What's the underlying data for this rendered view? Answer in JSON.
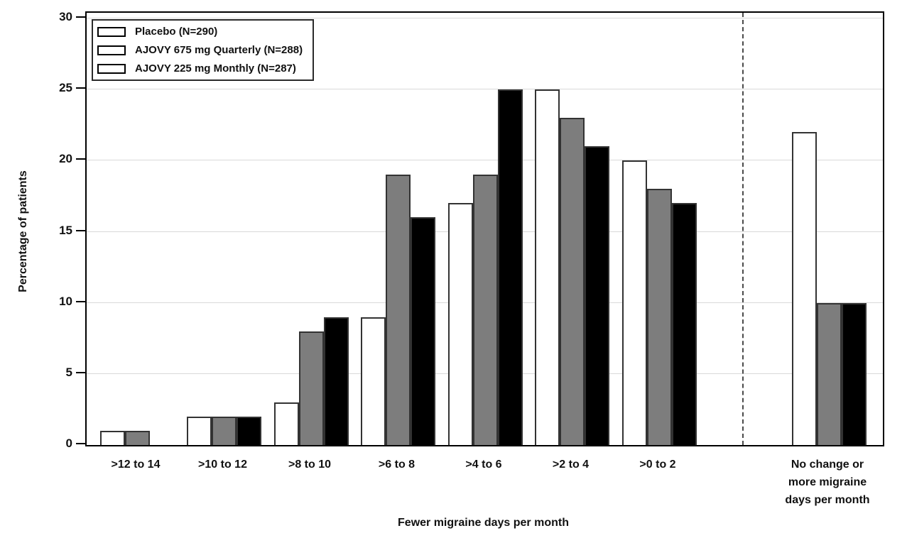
{
  "chart_data": {
    "type": "bar",
    "title": "",
    "xlabel": "Fewer migraine days per month",
    "ylabel": "Percentage of patients",
    "ylim": [
      0,
      30
    ],
    "yticks": [
      0,
      5,
      10,
      15,
      20,
      25,
      30
    ],
    "grid": "horizontal",
    "legend_position": "top-left-inside",
    "divider_style": "dashed-vertical-before-last-category",
    "categories": [
      ">12 to 14",
      ">10 to 12",
      ">8 to 10",
      ">6 to 8",
      ">4 to 6",
      ">2 to 4",
      ">0 to 2",
      "No change or\nmore migraine\ndays per month"
    ],
    "series": [
      {
        "name": "Placebo (N=290)",
        "color": "#ffffff",
        "values": [
          1,
          2,
          3,
          9,
          17,
          25,
          20,
          22
        ]
      },
      {
        "name": "AJOVY 675 mg Quarterly (N=288)",
        "color": "#7d7d7d",
        "values": [
          1,
          2,
          8,
          19,
          19,
          23,
          18,
          10
        ]
      },
      {
        "name": "AJOVY 225 mg Monthly (N=287)",
        "color": "#000000",
        "values": [
          0,
          2,
          9,
          16,
          25,
          21,
          17,
          10
        ]
      }
    ],
    "colors": {
      "grid": "#d9d9d9",
      "frame": "#000000",
      "bar_border": "#333333",
      "divider": "#4a4a4a"
    }
  }
}
